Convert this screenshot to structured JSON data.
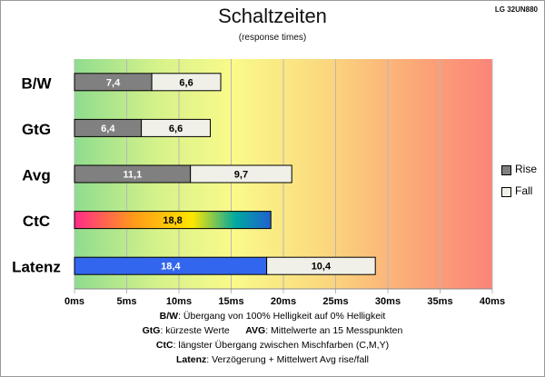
{
  "header": {
    "title": "Schaltzeiten",
    "subtitle": "(response times)",
    "model": "LG 32UN880"
  },
  "legend": {
    "items": [
      {
        "label": "Rise",
        "color": "#808080"
      },
      {
        "label": "Fall",
        "color": "#f0f0e8"
      }
    ]
  },
  "notes": {
    "line1_key": "B/W",
    "line1_text": ":  Übergang von 100% Helligkeit auf 0% Helligkeit",
    "line2_key_a": "GtG",
    "line2_text_a": ": kürzeste  Werte",
    "line2_key_b": "AVG",
    "line2_text_b": ": Mittelwerte  an 15 Messpunkten",
    "line3_key": "CtC",
    "line3_text": ": längster Übergang  zwischen Mischfarben  (C,M,Y)",
    "line4_key": "Latenz",
    "line4_text": ": Verzögerung  + Mittelwert Avg rise/fall"
  },
  "chart_data": {
    "type": "bar",
    "orientation": "horizontal",
    "stacked": true,
    "categories": [
      "B/W",
      "GtG",
      "Avg",
      "CtC",
      "Latenz"
    ],
    "series": [
      {
        "name": "Rise",
        "values": [
          7.4,
          6.4,
          11.1,
          18.8,
          18.4
        ]
      },
      {
        "name": "Fall",
        "values": [
          6.6,
          6.6,
          9.7,
          null,
          10.4
        ]
      }
    ],
    "bar_labels": [
      [
        "7,4",
        "6,6"
      ],
      [
        "6,4",
        "6,6"
      ],
      [
        "11,1",
        "9,7"
      ],
      [
        "18,8",
        null
      ],
      [
        "18,4",
        "10,4"
      ]
    ],
    "bar_styles": [
      "gray",
      "gray",
      "gray",
      "rainbow",
      "blue"
    ],
    "x_ticks": [
      "0ms",
      "5ms",
      "10ms",
      "15ms",
      "20ms",
      "25ms",
      "30ms",
      "35ms",
      "40ms"
    ],
    "xlim": [
      0,
      40
    ],
    "grid": true,
    "background": "gradient green-yellow-orange-red",
    "legend_position": "right",
    "colors": {
      "rise": "#808080",
      "fall": "#f0f0e8",
      "latenz_rise": "#3366ee",
      "ctc_gradient": [
        "#ff2a8a",
        "#ffb000",
        "#ffee00",
        "#00a8a0",
        "#2060d0"
      ]
    }
  }
}
